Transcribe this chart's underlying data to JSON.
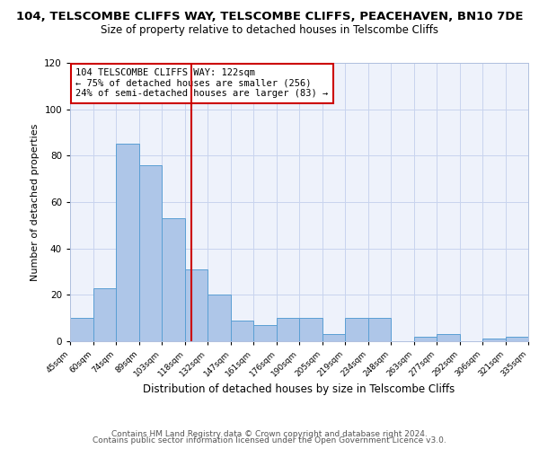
{
  "title1": "104, TELSCOMBE CLIFFS WAY, TELSCOMBE CLIFFS, PEACEHAVEN, BN10 7DE",
  "title2": "Size of property relative to detached houses in Telscombe Cliffs",
  "xlabel": "Distribution of detached houses by size in Telscombe Cliffs",
  "ylabel": "Number of detached properties",
  "bar_heights": [
    10,
    23,
    85,
    76,
    53,
    31,
    20,
    9,
    7,
    10,
    10,
    3,
    10,
    10,
    0,
    2,
    3,
    0,
    1,
    2
  ],
  "bin_edges": [
    45,
    60,
    74,
    89,
    103,
    118,
    132,
    147,
    161,
    176,
    190,
    205,
    219,
    234,
    248,
    263,
    277,
    292,
    306,
    321,
    335
  ],
  "tick_labels": [
    "45sqm",
    "60sqm",
    "74sqm",
    "89sqm",
    "103sqm",
    "118sqm",
    "132sqm",
    "147sqm",
    "161sqm",
    "176sqm",
    "190sqm",
    "205sqm",
    "219sqm",
    "234sqm",
    "248sqm",
    "263sqm",
    "277sqm",
    "292sqm",
    "306sqm",
    "321sqm",
    "335sqm"
  ],
  "bar_color": "#aec6e8",
  "bar_edge_color": "#5a9fd4",
  "vline_x": 122,
  "vline_color": "#cc0000",
  "ylim": [
    0,
    120
  ],
  "yticks": [
    0,
    20,
    40,
    60,
    80,
    100,
    120
  ],
  "annotation_text": "104 TELSCOMBE CLIFFS WAY: 122sqm\n← 75% of detached houses are smaller (256)\n24% of semi-detached houses are larger (83) →",
  "annotation_box_color": "#cc0000",
  "footer1": "Contains HM Land Registry data © Crown copyright and database right 2024.",
  "footer2": "Contains public sector information licensed under the Open Government Licence v3.0.",
  "background_color": "#eef2fb",
  "grid_color": "#c8d4ee",
  "title1_fontsize": 9.5,
  "title2_fontsize": 8.5,
  "xlabel_fontsize": 8.5,
  "ylabel_fontsize": 8,
  "footer_fontsize": 6.5,
  "annot_fontsize": 7.5
}
